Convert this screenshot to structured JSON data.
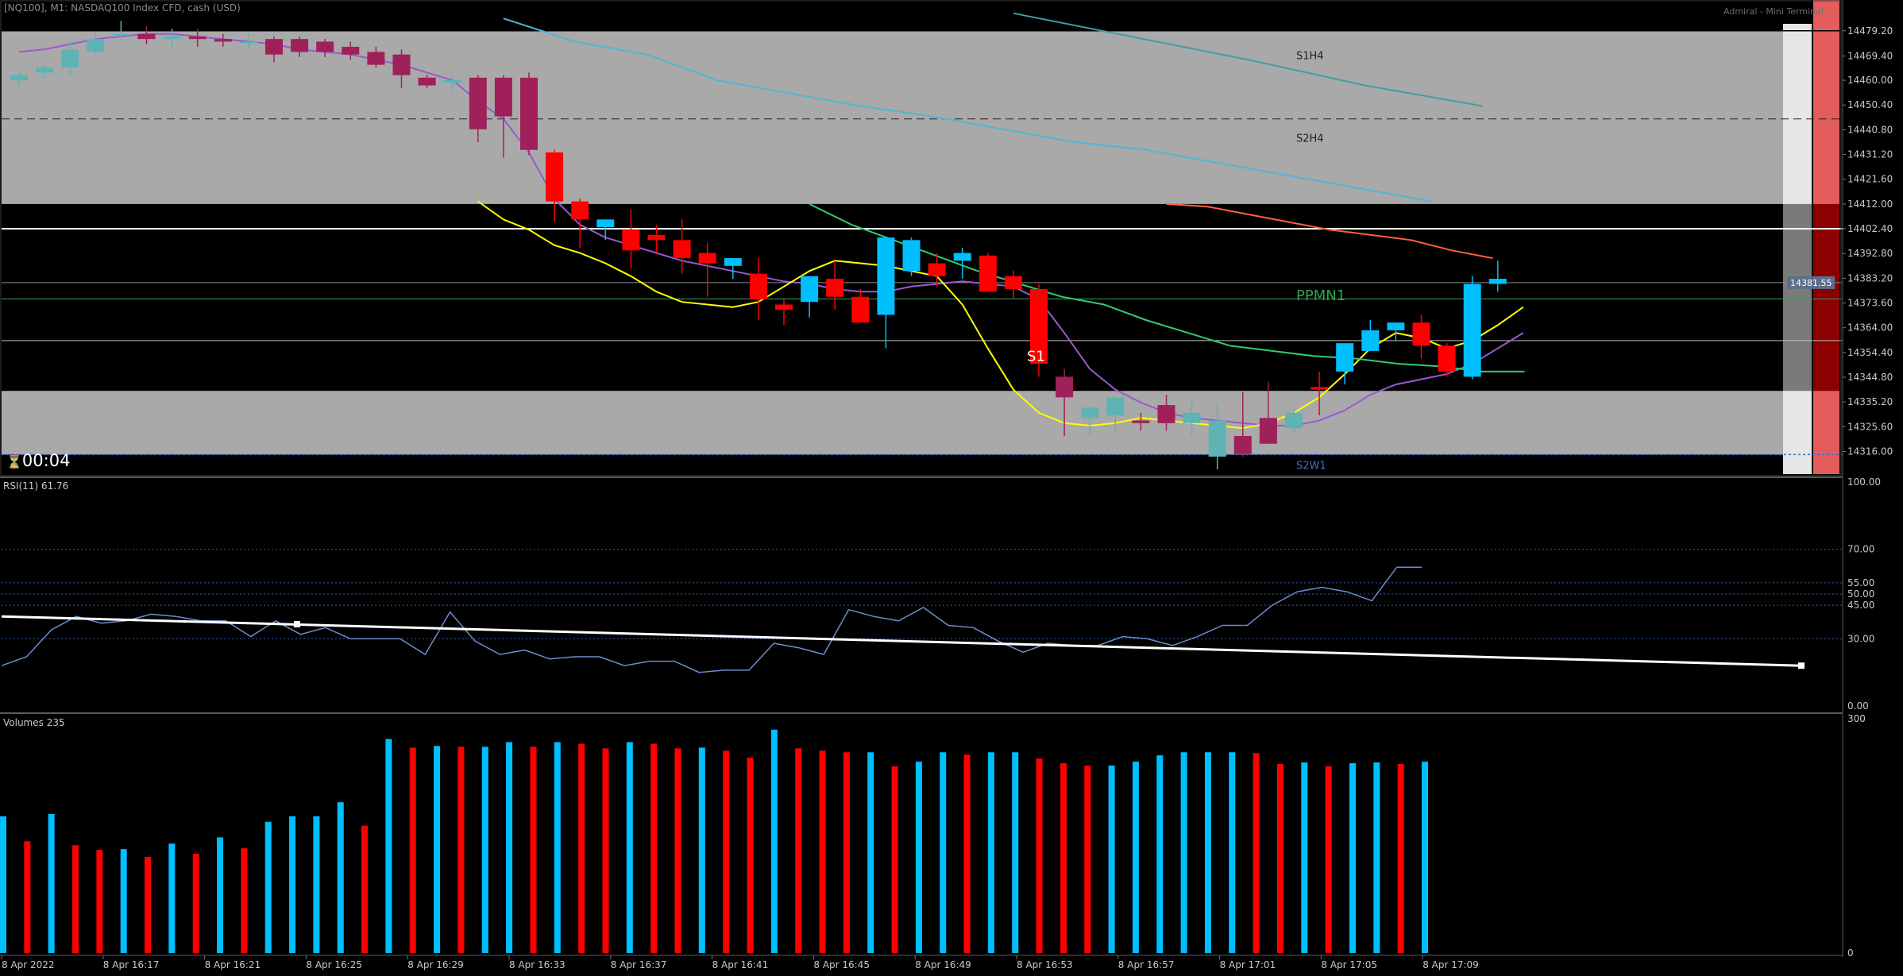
{
  "window": {
    "symbol_header": "[NQ100], M1:  NASDAQ100 Index CFD, cash (USD)",
    "broker_label": "Admiral - Mini Terminal",
    "countdown": "00:04",
    "price_tag": "14381.55"
  },
  "price_axis": {
    "ticks": [
      "14479.20",
      "14469.40",
      "14460.00",
      "14450.40",
      "14440.80",
      "14431.20",
      "14421.60",
      "14412.00",
      "14402.40",
      "14392.80",
      "14383.20",
      "14373.60",
      "14364.00",
      "14354.40",
      "14344.80",
      "14335.20",
      "14325.60",
      "14316.00"
    ],
    "range": [
      14310.3,
      14481.9
    ]
  },
  "level_labels": {
    "s1h4": "S1H4",
    "s2h4": "S2H4",
    "ppmn1": "PPMN1",
    "s1": "S1",
    "s2w1": "S2W1"
  },
  "rsi": {
    "label": "RSI(11) 61.76",
    "ticks": [
      "100.00",
      "70.00",
      "55.00",
      "50.00",
      "45.00",
      "30.00",
      "0.00"
    ],
    "levels": [
      70,
      55,
      50,
      45,
      30
    ],
    "values": [
      18,
      22,
      34,
      40,
      37,
      38,
      41,
      40,
      38,
      38,
      31,
      38,
      32,
      35,
      30,
      30,
      30,
      23,
      42,
      29,
      23,
      25,
      21,
      22,
      22,
      18,
      20,
      20,
      15,
      16,
      16,
      28,
      26,
      23,
      43,
      40,
      38,
      44,
      36,
      35,
      29,
      24,
      28,
      27,
      27,
      31,
      30,
      27,
      31,
      36,
      36,
      45,
      51,
      53,
      51,
      47,
      62,
      62
    ]
  },
  "volumes": {
    "label": "Volumes 235",
    "ticks": [
      "300",
      "0"
    ],
    "max": 300,
    "values": [
      175,
      143,
      178,
      138,
      132,
      133,
      123,
      140,
      127,
      148,
      134,
      168,
      175,
      175,
      193,
      163,
      274,
      263,
      265,
      264,
      264,
      270,
      264,
      270,
      268,
      262,
      270,
      268,
      262,
      263,
      259,
      250,
      286,
      262,
      259,
      257,
      257,
      239,
      245,
      257,
      254,
      257,
      257,
      249,
      243,
      240,
      240,
      245,
      253,
      257,
      257,
      257,
      256,
      242,
      244,
      239,
      243,
      244,
      242,
      245
    ]
  },
  "time_axis": {
    "labels": [
      "8 Apr 2022",
      "8 Apr 16:17",
      "8 Apr 16:21",
      "8 Apr 16:25",
      "8 Apr 16:29",
      "8 Apr 16:33",
      "8 Apr 16:37",
      "8 Apr 16:41",
      "8 Apr 16:45",
      "8 Apr 16:49",
      "8 Apr 16:53",
      "8 Apr 16:57",
      "8 Apr 17:01",
      "8 Apr 17:05",
      "8 Apr 17:09"
    ]
  },
  "colors": {
    "background": "#000000",
    "zone_fill": "#a9a9a9",
    "bull_teal": "#5fb3b3",
    "bear_maroon": "#a0205a",
    "bull_blue": "#00bfff",
    "bear_red": "#ff0000",
    "ma_purple": "#9b59d0",
    "ma_yellow": "#ffff00",
    "ma_green": "#2ecc71",
    "ma_orange": "#ff6040",
    "ma_cyan": "#4fb6d6",
    "rsi_line": "#6a8fcf",
    "trendline": "#ffffff"
  },
  "chart_data": [
    {
      "type": "candlestick",
      "title": "[NQ100], M1:  NASDAQ100 Index CFD, cash (USD)",
      "ylim": [
        14310.3,
        14481.9
      ],
      "candles_ohlc": [
        [
          14460,
          14464,
          14458,
          14462
        ],
        [
          14463,
          14466,
          14461,
          14465
        ],
        [
          14465,
          14475,
          14462,
          14472
        ],
        [
          14471,
          14479,
          14470,
          14476
        ],
        [
          14478,
          14483,
          14475,
          14478
        ],
        [
          14478,
          14481,
          14474,
          14476
        ],
        [
          14476,
          14480,
          14473,
          14477
        ],
        [
          14477,
          14480,
          14473,
          14476
        ],
        [
          14476,
          14478,
          14473,
          14475
        ],
        [
          14475,
          14478,
          14472,
          14475
        ],
        [
          14476,
          14477,
          14467,
          14470
        ],
        [
          14476,
          14477,
          14469,
          14471
        ],
        [
          14475,
          14476,
          14469,
          14471
        ],
        [
          14473,
          14475,
          14468,
          14470
        ],
        [
          14471,
          14473,
          14465,
          14466
        ],
        [
          14470,
          14472,
          14457,
          14462
        ],
        [
          14461,
          14462,
          14457,
          14458
        ],
        [
          14459,
          14462,
          14456,
          14460
        ],
        [
          14461,
          14462,
          14436,
          14441
        ],
        [
          14461,
          14462,
          14430,
          14446
        ],
        [
          14461,
          14463,
          14431,
          14433
        ],
        [
          14432,
          14433,
          14405,
          14413
        ],
        [
          14413,
          14414,
          14395,
          14406
        ],
        [
          14403,
          14406,
          14398,
          14406
        ],
        [
          14402,
          14410,
          14387,
          14394
        ],
        [
          14400,
          14404,
          14393,
          14398
        ],
        [
          14398,
          14406,
          14385,
          14391
        ],
        [
          14393,
          14397,
          14376,
          14389
        ],
        [
          14388,
          14390,
          14383,
          14391
        ],
        [
          14385,
          14391,
          14367,
          14375
        ],
        [
          14373,
          14375,
          14365,
          14371
        ],
        [
          14374,
          14378,
          14368,
          14384
        ],
        [
          14383,
          14390,
          14371,
          14376
        ],
        [
          14376,
          14379,
          14366,
          14366
        ],
        [
          14369,
          14399,
          14356,
          14399
        ],
        [
          14386,
          14399,
          14384,
          14398
        ],
        [
          14389,
          14393,
          14380,
          14384
        ],
        [
          14390,
          14395,
          14383,
          14393
        ],
        [
          14392,
          14393,
          14378,
          14378
        ],
        [
          14384,
          14386,
          14375,
          14379
        ],
        [
          14379,
          14381,
          14345,
          14350
        ],
        [
          14345,
          14348,
          14322,
          14337
        ],
        [
          14329,
          14329,
          14322,
          14333
        ],
        [
          14330,
          14335,
          14324,
          14337
        ],
        [
          14328,
          14331,
          14324,
          14327
        ],
        [
          14334,
          14338,
          14324,
          14327
        ],
        [
          14327,
          14336,
          14322,
          14331
        ],
        [
          14314,
          14335,
          14309,
          14328
        ],
        [
          14322,
          14339,
          14314,
          14315
        ],
        [
          14329,
          14343,
          14320,
          14319
        ],
        [
          14325,
          14333,
          14323,
          14331
        ],
        [
          14341,
          14347,
          14330,
          14340
        ],
        [
          14347,
          14348,
          14342,
          14358
        ],
        [
          14355,
          14367,
          14355,
          14363
        ],
        [
          14363,
          14366,
          14359,
          14366
        ],
        [
          14366,
          14369,
          14352,
          14357
        ],
        [
          14357,
          14358,
          14345,
          14347
        ],
        [
          14345,
          14384,
          14344,
          14381
        ],
        [
          14381,
          14390,
          14378,
          14383
        ]
      ],
      "moving_averages": {
        "purple": [
          14471,
          14472,
          14474,
          14476,
          14477,
          14478,
          14478,
          14477,
          14476,
          14475,
          14474,
          14472,
          14471,
          14470,
          14468,
          14466,
          14463,
          14460,
          14452,
          14445,
          14432,
          14414,
          14404,
          14399,
          14396,
          14393,
          14390,
          14388,
          14386,
          14384,
          14382,
          14381,
          14379,
          14378,
          14378,
          14380,
          14381,
          14382,
          14381,
          14380,
          14375,
          14362,
          14348,
          14340,
          14335,
          14331,
          14329,
          14328,
          14327,
          14326,
          14326,
          14328,
          14332,
          14338,
          14342,
          14344,
          14346,
          14350,
          14356,
          14362
        ],
        "yellow": [
          14413,
          14406,
          14402,
          14396,
          14393,
          14389,
          14384,
          14378,
          14374,
          14373,
          14372,
          14374,
          14380,
          14386,
          14390,
          14389,
          14388,
          14386,
          14384,
          14373,
          14356,
          14340,
          14331,
          14327,
          14326,
          14327,
          14329,
          14328,
          14327,
          14326,
          14325,
          14327,
          14331,
          14337,
          14346,
          14356,
          14362,
          14360,
          14356,
          14359,
          14365,
          14372
        ],
        "green": [
          14412,
          14404,
          14398,
          14392,
          14386,
          14381,
          14376,
          14373,
          14367,
          14362,
          14357,
          14355,
          14353,
          14352,
          14350,
          14349,
          14347,
          14347
        ],
        "orange": [
          14412,
          14411,
          14408,
          14405,
          14402,
          14400,
          14398,
          14394,
          14391
        ],
        "cyan": [
          14484,
          14475,
          14470,
          14460,
          14455,
          14450,
          14446,
          14441,
          14436,
          14433,
          14428,
          14423,
          14418,
          14413
        ],
        "teal": [
          14486,
          14477,
          14468,
          14458,
          14450
        ]
      },
      "horizontal_levels": [
        14412.0,
        14402.4,
        14381.5,
        14375.2,
        14359.0,
        14339.5,
        14314.8
      ],
      "labels": [
        "S1H4",
        "S2H4",
        "PPMN1",
        "S1",
        "S2W1"
      ]
    },
    {
      "type": "line",
      "title": "RSI(11) 61.76",
      "ylim": [
        0,
        100
      ],
      "levels": [
        70,
        55,
        50,
        45,
        30
      ]
    },
    {
      "type": "bar",
      "title": "Volumes 235",
      "ylim": [
        0,
        300
      ]
    }
  ]
}
